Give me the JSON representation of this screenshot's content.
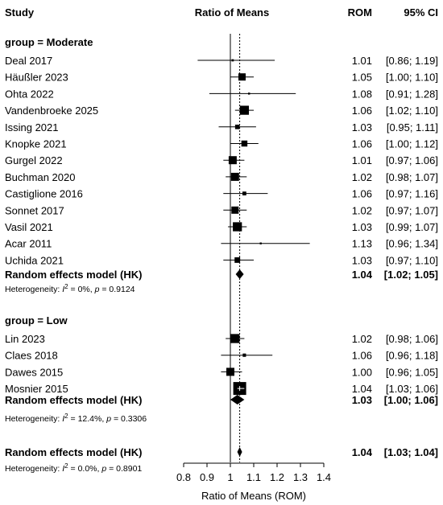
{
  "chart_data": {
    "type": "forest",
    "headers": {
      "study": "Study",
      "effect": "Ratio of Means",
      "est": "ROM",
      "ci": "95% CI"
    },
    "xlabel": "Ratio of Means (ROM)",
    "xlim": [
      0.8,
      1.4
    ],
    "ticks": [
      "0.8",
      "0.9",
      "1",
      "1.1",
      "1.2",
      "1.3",
      "1.4"
    ],
    "null_line": 1.0,
    "pooled_line": 1.04,
    "groups": [
      {
        "title": "group = Moderate",
        "studies": [
          {
            "name": "Deal 2017",
            "est": 1.01,
            "lo": 0.86,
            "hi": 1.19,
            "est_text": "1.01",
            "ci_text": "[0.86; 1.19]"
          },
          {
            "name": "Häußler 2023",
            "est": 1.05,
            "lo": 1.0,
            "hi": 1.1,
            "est_text": "1.05",
            "ci_text": "[1.00; 1.10]"
          },
          {
            "name": "Ohta 2022",
            "est": 1.08,
            "lo": 0.91,
            "hi": 1.28,
            "est_text": "1.08",
            "ci_text": "[0.91; 1.28]"
          },
          {
            "name": "Vandenbroeke 2025",
            "est": 1.06,
            "lo": 1.02,
            "hi": 1.1,
            "est_text": "1.06",
            "ci_text": "[1.02; 1.10]"
          },
          {
            "name": "Issing 2021",
            "est": 1.03,
            "lo": 0.95,
            "hi": 1.11,
            "est_text": "1.03",
            "ci_text": "[0.95; 1.11]"
          },
          {
            "name": "Knopke 2021",
            "est": 1.06,
            "lo": 1.0,
            "hi": 1.12,
            "est_text": "1.06",
            "ci_text": "[1.00; 1.12]"
          },
          {
            "name": "Gurgel 2022",
            "est": 1.01,
            "lo": 0.97,
            "hi": 1.06,
            "est_text": "1.01",
            "ci_text": "[0.97; 1.06]"
          },
          {
            "name": "Buchman 2020",
            "est": 1.02,
            "lo": 0.98,
            "hi": 1.07,
            "est_text": "1.02",
            "ci_text": "[0.98; 1.07]"
          },
          {
            "name": "Castiglione 2016",
            "est": 1.06,
            "lo": 0.97,
            "hi": 1.16,
            "est_text": "1.06",
            "ci_text": "[0.97; 1.16]"
          },
          {
            "name": "Sonnet 2017",
            "est": 1.02,
            "lo": 0.97,
            "hi": 1.07,
            "est_text": "1.02",
            "ci_text": "[0.97; 1.07]"
          },
          {
            "name": "Vasil 2021",
            "est": 1.03,
            "lo": 0.99,
            "hi": 1.07,
            "est_text": "1.03",
            "ci_text": "[0.99; 1.07]"
          },
          {
            "name": "Acar 2011",
            "est": 1.13,
            "lo": 0.96,
            "hi": 1.34,
            "est_text": "1.13",
            "ci_text": "[0.96; 1.34]"
          },
          {
            "name": "Uchida 2021",
            "est": 1.03,
            "lo": 0.97,
            "hi": 1.1,
            "est_text": "1.03",
            "ci_text": "[0.97; 1.10]"
          }
        ],
        "pooled": {
          "name": "Random effects model (HK)",
          "est": 1.04,
          "lo": 1.02,
          "hi": 1.05,
          "est_text": "1.04",
          "ci_text": "[1.02; 1.05]"
        },
        "heterogeneity": {
          "i2": "0%",
          "p": "0.9124"
        }
      },
      {
        "title": "group = Low",
        "studies": [
          {
            "name": "Lin 2023",
            "est": 1.02,
            "lo": 0.98,
            "hi": 1.06,
            "est_text": "1.02",
            "ci_text": "[0.98; 1.06]"
          },
          {
            "name": "Claes 2018",
            "est": 1.06,
            "lo": 0.96,
            "hi": 1.18,
            "est_text": "1.06",
            "ci_text": "[0.96; 1.18]"
          },
          {
            "name": "Dawes 2015",
            "est": 1.0,
            "lo": 0.96,
            "hi": 1.05,
            "est_text": "1.00",
            "ci_text": "[0.96; 1.05]"
          },
          {
            "name": "Mosnier 2015",
            "est": 1.04,
            "lo": 1.03,
            "hi": 1.06,
            "est_text": "1.04",
            "ci_text": "[1.03; 1.06]"
          }
        ],
        "pooled": {
          "name": "Random effects model (HK)",
          "est": 1.03,
          "lo": 1.0,
          "hi": 1.06,
          "est_text": "1.03",
          "ci_text": "[1.00; 1.06]"
        },
        "heterogeneity": {
          "i2": "12.4%",
          "p": "0.3306"
        }
      }
    ],
    "overall": {
      "pooled": {
        "name": "Random effects model (HK)",
        "est": 1.04,
        "lo": 1.03,
        "hi": 1.04,
        "est_text": "1.04",
        "ci_text": "[1.03; 1.04]"
      },
      "heterogeneity": {
        "i2": "0.0%",
        "p": "0.8901"
      }
    }
  }
}
